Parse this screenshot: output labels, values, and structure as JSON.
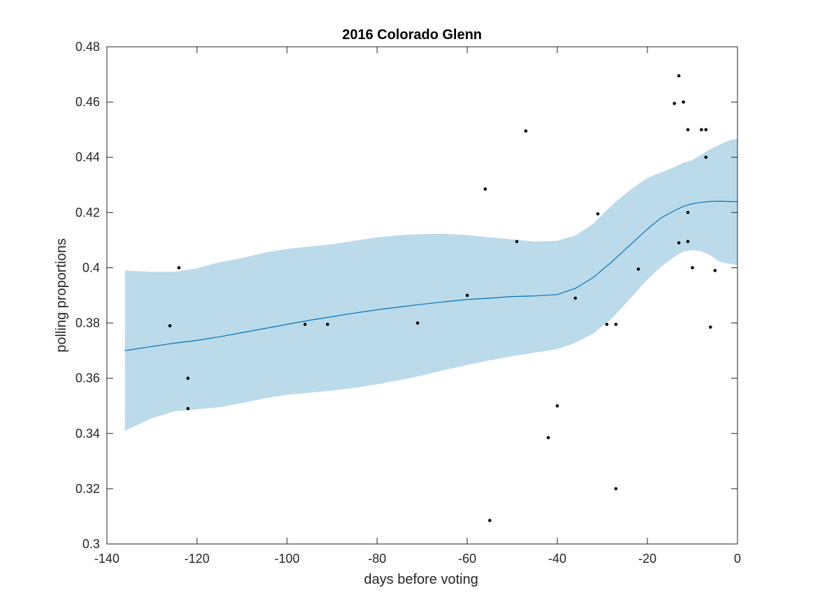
{
  "chart_data": {
    "type": "scatter",
    "title": "2016 Colorado Glenn",
    "xlabel": "days before voting",
    "ylabel": "polling proportions",
    "xlim": [
      -140,
      0
    ],
    "ylim": [
      0.3,
      0.48
    ],
    "xticks": [
      -140,
      -120,
      -100,
      -80,
      -60,
      -40,
      -20,
      0
    ],
    "yticks": [
      0.3,
      0.32,
      0.34,
      0.36,
      0.38,
      0.4,
      0.42,
      0.44,
      0.46,
      0.48
    ],
    "xtick_labels": [
      "-140",
      "-120",
      "-100",
      "-80",
      "-60",
      "-40",
      "-20",
      "0"
    ],
    "ytick_labels": [
      "0.3",
      "0.32",
      "0.34",
      "0.36",
      "0.38",
      "0.4",
      "0.42",
      "0.44",
      "0.46",
      "0.48"
    ],
    "grid": false,
    "box": true,
    "colors": {
      "points": "#000000",
      "fit_line": "#0072BD",
      "band": "#bcdbea",
      "axes": "#262626"
    },
    "series": [
      {
        "type": "scatter",
        "x": [
          -126,
          -124,
          -122,
          -122,
          -96,
          -91,
          -71,
          -60,
          -56,
          -55,
          -49,
          -47,
          -42,
          -40,
          -36,
          -31,
          -29,
          -27,
          -27,
          -22,
          -14,
          -13,
          -13,
          -12,
          -11,
          -11,
          -11,
          -10,
          -8,
          -7,
          -7,
          -6,
          -5
        ],
        "y": [
          0.379,
          0.4,
          0.36,
          0.349,
          0.3795,
          0.3795,
          0.38,
          0.39,
          0.4285,
          0.3085,
          0.4095,
          0.4495,
          0.3385,
          0.35,
          0.389,
          0.4195,
          0.3795,
          0.3795,
          0.32,
          0.3995,
          0.4595,
          0.4695,
          0.409,
          0.46,
          0.45,
          0.42,
          0.4095,
          0.4,
          0.45,
          0.45,
          0.44,
          0.3785,
          0.399
        ]
      },
      {
        "type": "line",
        "x": [
          -136,
          -130,
          -125,
          -120,
          -115,
          -110,
          -105,
          -100,
          -95,
          -90,
          -85,
          -80,
          -75,
          -70,
          -65,
          -60,
          -55,
          -50,
          -45,
          -40,
          -36,
          -32,
          -28,
          -24,
          -20,
          -17,
          -14,
          -12,
          -10,
          -8,
          -6,
          -4,
          -2,
          0
        ],
        "y": [
          0.37,
          0.3715,
          0.3727,
          0.3737,
          0.375,
          0.3765,
          0.378,
          0.3795,
          0.381,
          0.3823,
          0.3836,
          0.3848,
          0.3858,
          0.3868,
          0.3877,
          0.3885,
          0.389,
          0.3896,
          0.3898,
          0.3903,
          0.3925,
          0.3965,
          0.402,
          0.408,
          0.414,
          0.418,
          0.4207,
          0.4222,
          0.4232,
          0.4237,
          0.424,
          0.4241,
          0.424,
          0.4239
        ]
      },
      {
        "type": "area",
        "x": [
          -136,
          -130,
          -125,
          -120,
          -115,
          -110,
          -105,
          -100,
          -95,
          -90,
          -85,
          -80,
          -75,
          -70,
          -65,
          -60,
          -55,
          -50,
          -45,
          -40,
          -36,
          -32,
          -28,
          -24,
          -20,
          -17,
          -14,
          -12,
          -10,
          -8,
          -6,
          -4,
          -2,
          0
        ],
        "upper": [
          0.399,
          0.3985,
          0.3985,
          0.3998,
          0.402,
          0.4035,
          0.4055,
          0.4068,
          0.4077,
          0.4085,
          0.4098,
          0.411,
          0.4118,
          0.4122,
          0.4123,
          0.4118,
          0.411,
          0.4103,
          0.4095,
          0.4098,
          0.4117,
          0.416,
          0.4225,
          0.428,
          0.4325,
          0.4345,
          0.4365,
          0.438,
          0.439,
          0.441,
          0.443,
          0.4445,
          0.446,
          0.4468
        ],
        "lower": [
          0.341,
          0.3455,
          0.348,
          0.3488,
          0.3495,
          0.351,
          0.3527,
          0.354,
          0.3548,
          0.3555,
          0.3565,
          0.3578,
          0.3593,
          0.361,
          0.363,
          0.3648,
          0.3665,
          0.368,
          0.3693,
          0.3705,
          0.3728,
          0.3762,
          0.3815,
          0.3885,
          0.3958,
          0.4003,
          0.404,
          0.4058,
          0.4064,
          0.406,
          0.4045,
          0.4022,
          0.4015,
          0.401
        ]
      }
    ]
  }
}
